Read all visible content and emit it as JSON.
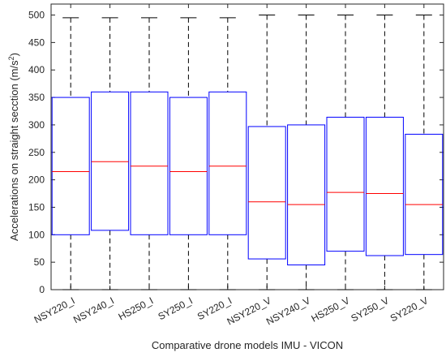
{
  "chart_data": {
    "type": "box",
    "title": "",
    "xlabel": "Comparative drone models IMU - VICON",
    "ylabel": "Accelerations on straight secction (m/s²)",
    "ylim": [
      0,
      520
    ],
    "yticks": [
      0,
      50,
      100,
      150,
      200,
      250,
      300,
      350,
      400,
      450,
      500
    ],
    "categories": [
      "NSY220_I",
      "NSY240_I",
      "HS250_I",
      "SY250_I",
      "SY220_I",
      "NSY220_V",
      "NSY240_V",
      "HS250_V",
      "SY250_V",
      "SY220_V"
    ],
    "boxes": [
      {
        "min": 0,
        "q1": 100,
        "median": 215,
        "q3": 350,
        "max": 495
      },
      {
        "min": 0,
        "q1": 108,
        "median": 233,
        "q3": 360,
        "max": 495
      },
      {
        "min": 0,
        "q1": 100,
        "median": 225,
        "q3": 360,
        "max": 495
      },
      {
        "min": 0,
        "q1": 100,
        "median": 215,
        "q3": 350,
        "max": 495
      },
      {
        "min": 0,
        "q1": 100,
        "median": 225,
        "q3": 360,
        "max": 495
      },
      {
        "min": 0,
        "q1": 56,
        "median": 160,
        "q3": 297,
        "max": 500
      },
      {
        "min": 0,
        "q1": 45,
        "median": 155,
        "q3": 300,
        "max": 500
      },
      {
        "min": 0,
        "q1": 70,
        "median": 177,
        "q3": 314,
        "max": 500
      },
      {
        "min": 0,
        "q1": 62,
        "median": 175,
        "q3": 314,
        "max": 500
      },
      {
        "min": 0,
        "q1": 64,
        "median": 155,
        "q3": 283,
        "max": 500
      }
    ],
    "grid": false,
    "colors": {
      "box": "#0000ff",
      "median": "#ff0000",
      "whisker": "#000000",
      "axis": "#262626"
    }
  }
}
